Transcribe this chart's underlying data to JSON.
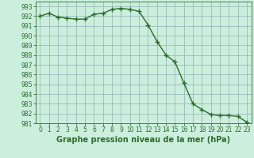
{
  "x": [
    0,
    1,
    2,
    3,
    4,
    5,
    6,
    7,
    8,
    9,
    10,
    11,
    12,
    13,
    14,
    15,
    16,
    17,
    18,
    19,
    20,
    21,
    22,
    23
  ],
  "y": [
    992.0,
    992.3,
    991.9,
    991.8,
    991.7,
    991.7,
    992.2,
    992.3,
    992.7,
    992.8,
    992.7,
    992.5,
    991.1,
    989.4,
    988.0,
    987.3,
    985.1,
    983.0,
    982.4,
    981.9,
    981.8,
    981.8,
    981.7,
    981.1
  ],
  "line_color": "#2a6e2a",
  "marker": "+",
  "marker_size": 4,
  "bg_color": "#cceedd",
  "grid_color": "#99bbbb",
  "xlabel": "Graphe pression niveau de la mer (hPa)",
  "xlabel_fontsize": 7,
  "ylim": [
    981,
    993.5
  ],
  "xlim": [
    -0.5,
    23.5
  ],
  "yticks": [
    981,
    982,
    983,
    984,
    985,
    986,
    987,
    988,
    989,
    990,
    991,
    992,
    993
  ],
  "xticks": [
    0,
    1,
    2,
    3,
    4,
    5,
    6,
    7,
    8,
    9,
    10,
    11,
    12,
    13,
    14,
    15,
    16,
    17,
    18,
    19,
    20,
    21,
    22,
    23
  ],
  "tick_color": "#2a6e2a",
  "spine_color": "#2a6e2a",
  "tick_labelsize": 5.5,
  "linewidth": 1.0,
  "marker_color": "#2a6e2a"
}
